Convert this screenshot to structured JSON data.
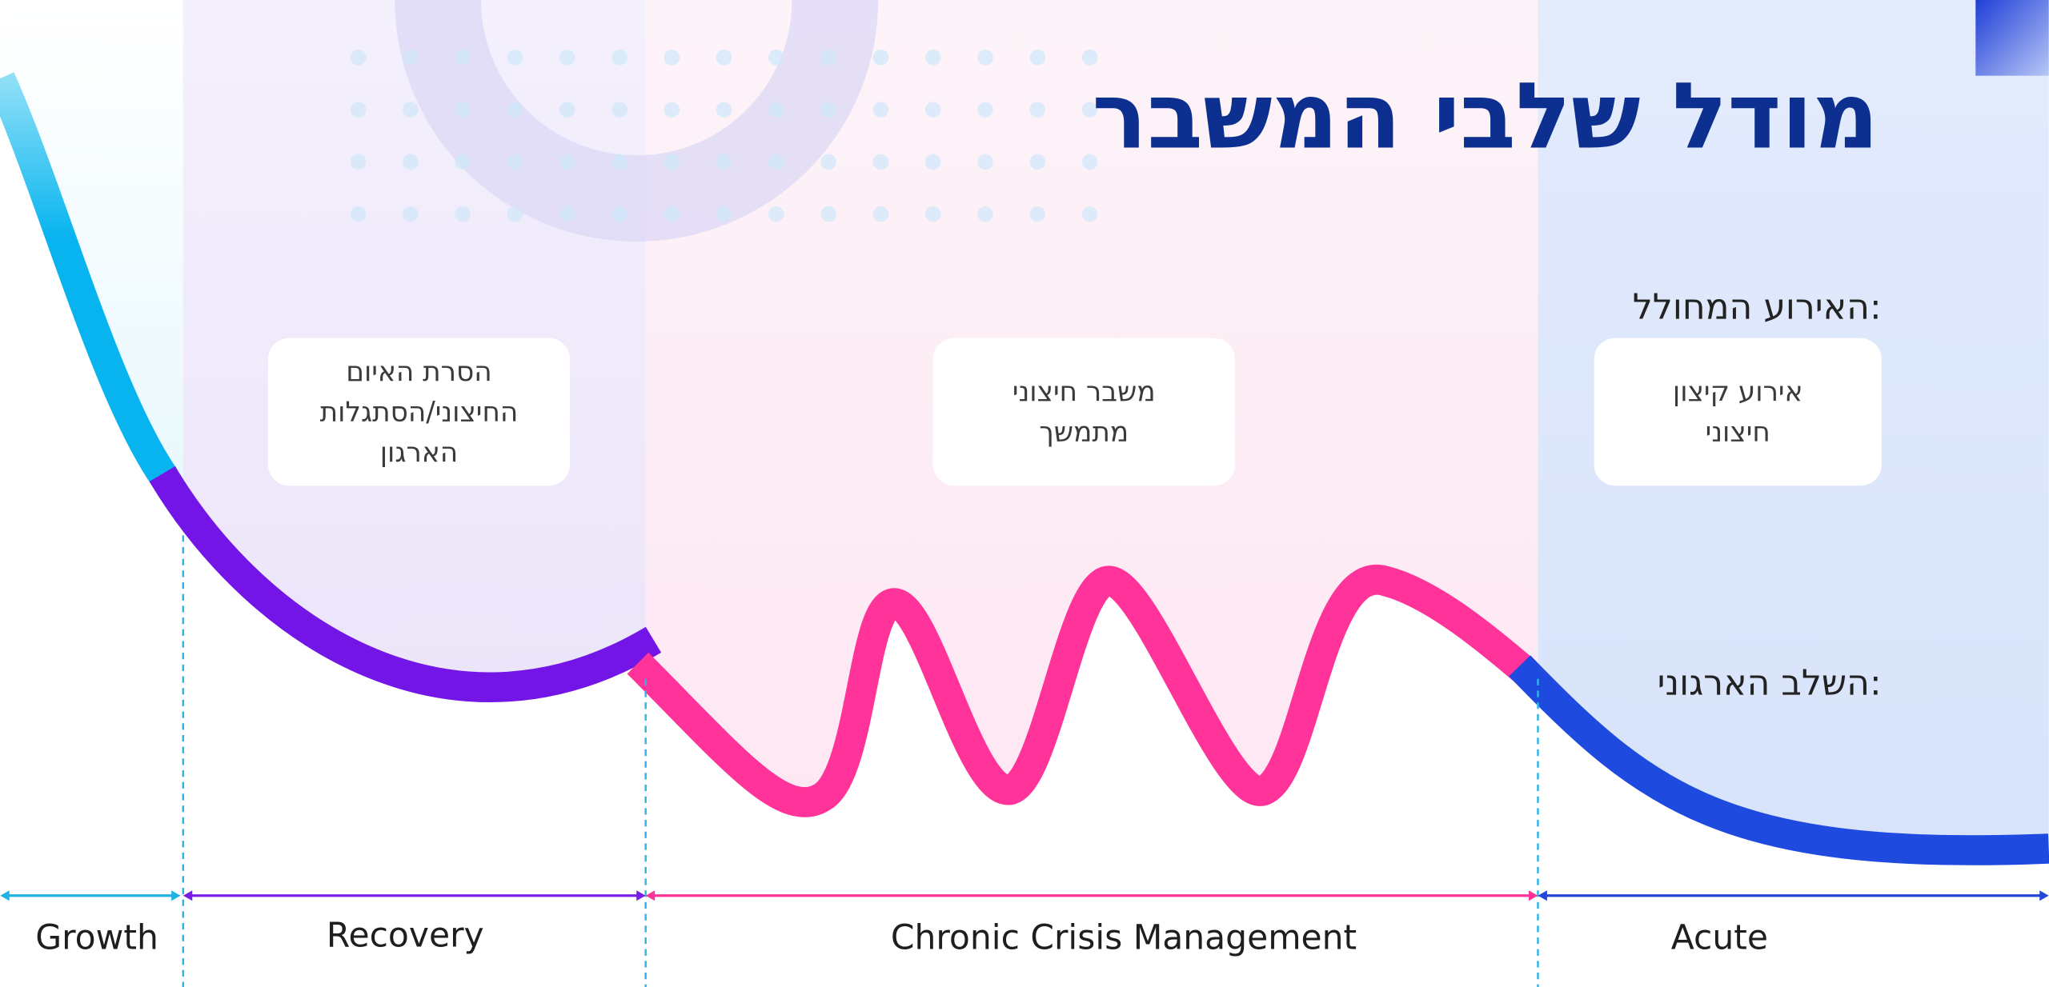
{
  "title": "מודל שלבי המשבר",
  "row_labels": {
    "event": "האירוע המחולל:",
    "stage": "השלב הארגוני:"
  },
  "events": [
    {
      "lines": [
        "הסרת האיום",
        "החיצוני/הסתגלות",
        "הארגון"
      ]
    },
    {
      "lines": [
        "משבר חיצוני",
        "מתמשך"
      ]
    },
    {
      "lines": [
        "אירוע קיצון",
        "חיצוני"
      ]
    }
  ],
  "phases": [
    "Growth",
    "Recovery",
    "Chronic Crisis Management",
    "Acute"
  ]
}
